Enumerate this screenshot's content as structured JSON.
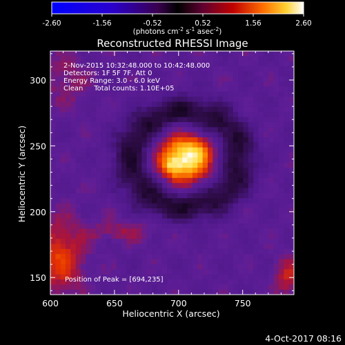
{
  "colorbar": {
    "ticks": [
      "-2.60",
      "-1.56",
      "-0.52",
      "0.52",
      "1.56",
      "2.60"
    ],
    "range": [
      -2.6,
      2.6
    ],
    "units_text": "(photons cm",
    "units_sup1": "-2",
    "units_mid": " s",
    "units_sup2": "-1",
    "units_end": " asec",
    "units_sup3": "-2",
    "units_close": ")"
  },
  "chart_data": {
    "type": "heatmap",
    "title": "Reconstructed RHESSI Image",
    "xlabel": "Heliocentric X (arcsec)",
    "ylabel": "Heliocentric Y (arcsec)",
    "xlim": [
      600,
      790
    ],
    "ylim": [
      137,
      322
    ],
    "x_ticks": [
      "600",
      "650",
      "700",
      "750"
    ],
    "x_tick_values": [
      600,
      650,
      700,
      750
    ],
    "y_ticks": [
      "150",
      "200",
      "250",
      "300"
    ],
    "y_tick_values": [
      150,
      200,
      250,
      300
    ],
    "colormap": "black-purple-red-orange-yellow-white",
    "peak": {
      "x": 694,
      "y": 235
    },
    "sources": [
      {
        "x": 705,
        "y": 240,
        "sx": 17,
        "sy": 15,
        "amp": 2.3
      },
      {
        "x": 694,
        "y": 235,
        "sx": 6,
        "sy": 6,
        "amp": 0.6
      },
      {
        "x": 716,
        "y": 250,
        "sx": 8,
        "sy": 7,
        "amp": 0.35
      }
    ],
    "annotations": [
      "2-Nov-2015 10:32:48.000 to 10:42:48.000",
      "Detectors: 1F 5F 7F, Att 0",
      "Energy Range: 3.0 - 6.0 keV",
      "Clean     Total counts: 1.10E+05"
    ],
    "peak_label": "Position of Peak = [694,235]"
  },
  "footer": {
    "timestamp": "4-Oct-2017 08:16"
  }
}
